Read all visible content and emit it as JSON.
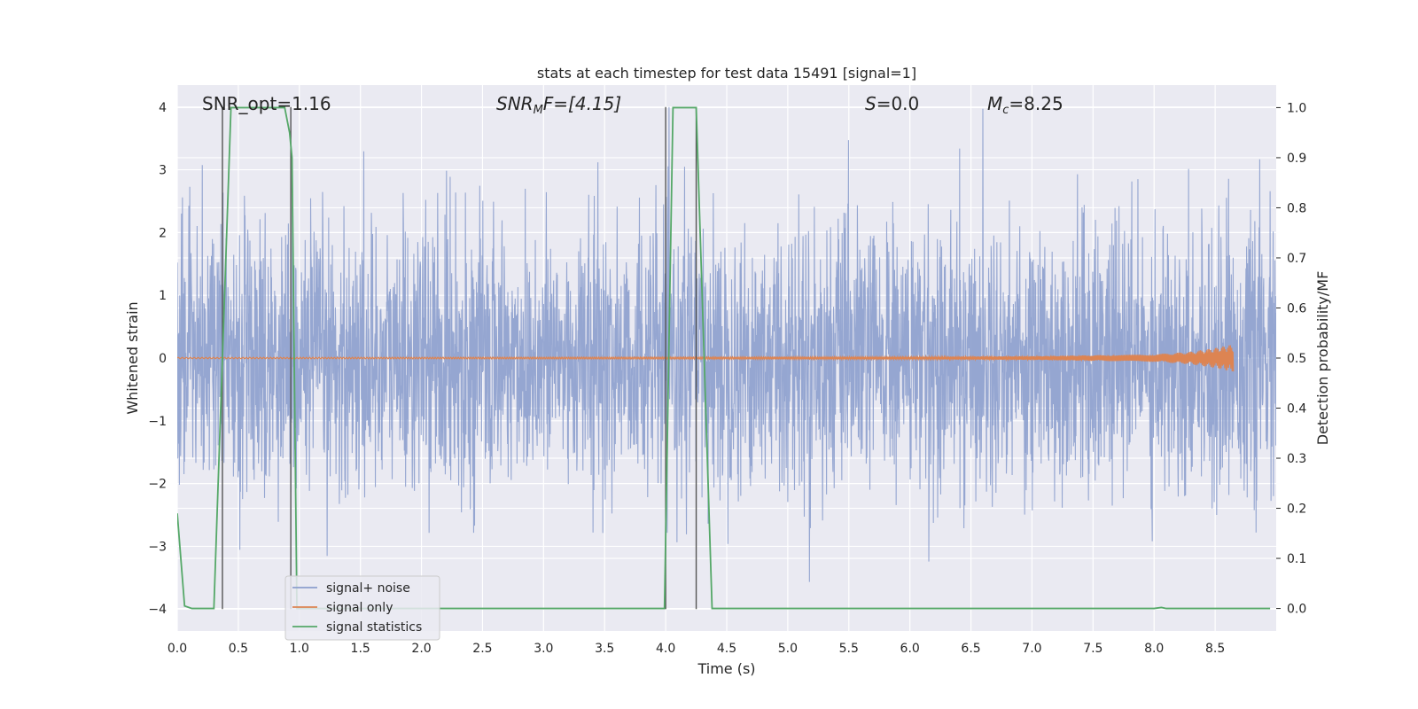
{
  "chart_data": {
    "type": "line",
    "title": "stats at each timestep for test data 15491 [signal=1]",
    "xlabel": "Time (s)",
    "ylabel_left": "Whitened strain",
    "ylabel_right": "Detection probability/MF",
    "xlim": [
      0.0,
      9.0
    ],
    "ylim_left": [
      -4.35,
      4.35
    ],
    "ylim_right": [
      -0.045,
      1.045
    ],
    "x_ticks": [
      "0.0",
      "0.5",
      "1.0",
      "1.5",
      "2.0",
      "2.5",
      "3.0",
      "3.5",
      "4.0",
      "4.5",
      "5.0",
      "5.5",
      "6.0",
      "6.5",
      "7.0",
      "7.5",
      "8.0",
      "8.5"
    ],
    "y_ticks_left": [
      "−4",
      "−3",
      "−2",
      "−1",
      "0",
      "1",
      "2",
      "3",
      "4"
    ],
    "y_ticks_right": [
      "0.0",
      "0.1",
      "0.2",
      "0.3",
      "0.4",
      "0.5",
      "0.6",
      "0.7",
      "0.8",
      "0.9",
      "1.0"
    ],
    "grid": true,
    "legend_position": "lower-left",
    "annotations": {
      "snr_opt": "SNR_opt=1.16",
      "snr_mf_main": "SNR",
      "snr_mf_sub": "M",
      "snr_mf_rest": "F=[4.15]",
      "s_main": "S",
      "s_rest": "=0.0",
      "mc_main": "M",
      "mc_sub": "c",
      "mc_rest": "=8.25"
    },
    "series": [
      {
        "name": "signal+ noise",
        "color": "#8c9fcd",
        "axis": "left",
        "kind": "noise",
        "range": [
          -4.0,
          4.0
        ]
      },
      {
        "name": "signal only",
        "color": "#dd8452",
        "axis": "left",
        "x": [
          0.0,
          6.0,
          7.0,
          8.0,
          8.3,
          8.5,
          8.65
        ],
        "amplitude": [
          0.01,
          0.02,
          0.03,
          0.06,
          0.1,
          0.16,
          0.22
        ]
      },
      {
        "name": "signal statistics",
        "color": "#55a868",
        "axis": "right",
        "x": [
          0.0,
          0.06,
          0.12,
          0.3,
          0.44,
          0.5,
          0.88,
          0.92,
          0.94,
          0.98,
          1.5,
          3.99,
          4.06,
          4.25,
          4.38,
          8.0,
          8.06,
          8.1,
          8.95
        ],
        "y": [
          0.19,
          0.005,
          0.0,
          0.0,
          1.0,
          1.0,
          1.0,
          0.95,
          0.9,
          0.0,
          0.0,
          0.0,
          1.0,
          1.0,
          0.0,
          0.0,
          0.002,
          0.0,
          0.0
        ]
      }
    ],
    "vertical_markers": [
      0.37,
      0.93,
      4.0,
      4.25
    ],
    "marker_color": "#555555"
  }
}
